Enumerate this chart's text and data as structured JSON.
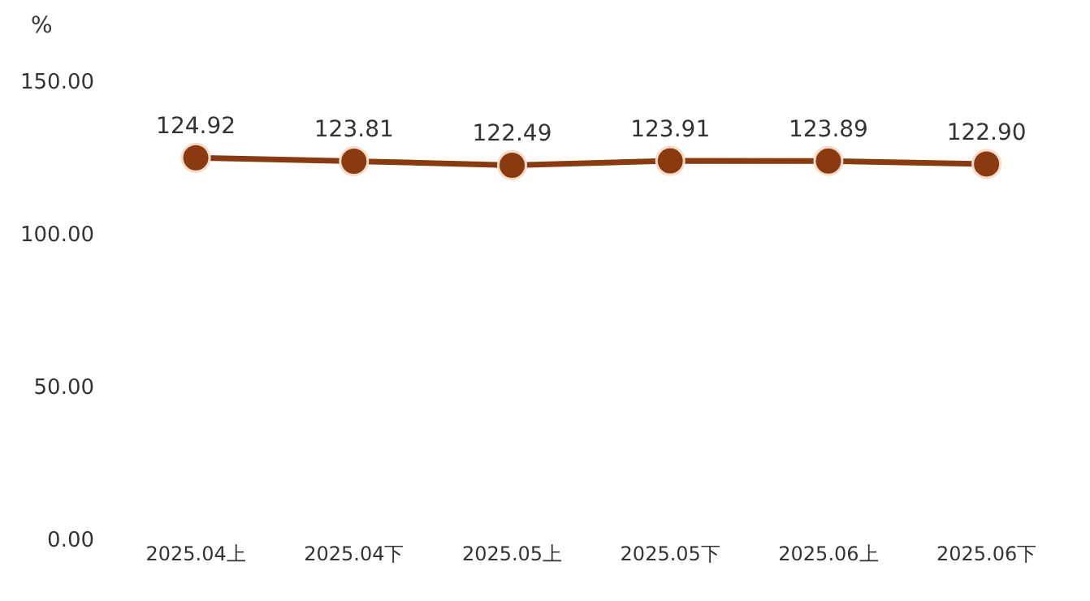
{
  "chart_data": {
    "type": "line",
    "ylabel": "%",
    "categories": [
      "2025.04上",
      "2025.04下",
      "2025.05上",
      "2025.05下",
      "2025.06上",
      "2025.06下"
    ],
    "series": [
      {
        "color": "#8b3a0f",
        "values": [
          124.92,
          123.81,
          122.49,
          123.91,
          123.89,
          122.9
        ],
        "value_labels": [
          "124.92",
          "123.81",
          "122.49",
          "123.91",
          "123.89",
          "122.90"
        ]
      }
    ],
    "ylim": [
      0,
      150
    ],
    "yticks": [
      {
        "value": 0,
        "label": "0.00"
      },
      {
        "value": 50,
        "label": "50.00"
      },
      {
        "value": 100,
        "label": "100.00"
      },
      {
        "value": 150,
        "label": "150.00"
      }
    ],
    "marker": "circle",
    "line_style": "solid"
  }
}
